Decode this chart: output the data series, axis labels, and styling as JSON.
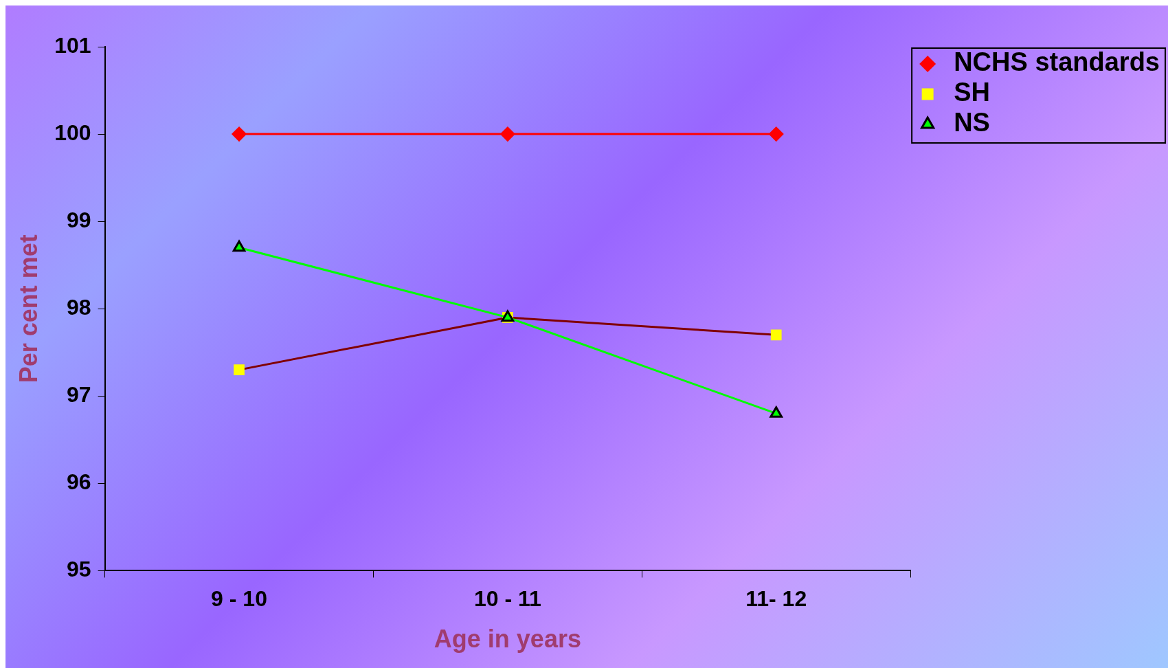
{
  "chart_data": {
    "type": "line",
    "xlabel": "Age in years",
    "ylabel": "Per cent met",
    "categories": [
      "9 - 10",
      "10 - 11",
      "11- 12"
    ],
    "series": [
      {
        "name": "NCHS standards",
        "color": "#ff0000",
        "marker": "diamond",
        "values": [
          100,
          100,
          100
        ]
      },
      {
        "name": "SH",
        "color": "#800000",
        "marker": "square",
        "colors": [
          "#ffff00",
          "#ffff00",
          "#ffff00"
        ],
        "values": [
          97.3,
          97.9,
          97.7
        ]
      },
      {
        "name": "NS",
        "color": "#00ff00",
        "marker": "triangle",
        "values": [
          98.7,
          97.9,
          96.8
        ]
      }
    ],
    "ylim": [
      95,
      101
    ],
    "yticks": [
      95,
      96,
      97,
      98,
      99,
      100,
      101
    ],
    "grid": false,
    "legend": "top right",
    "line_style": "solid"
  }
}
